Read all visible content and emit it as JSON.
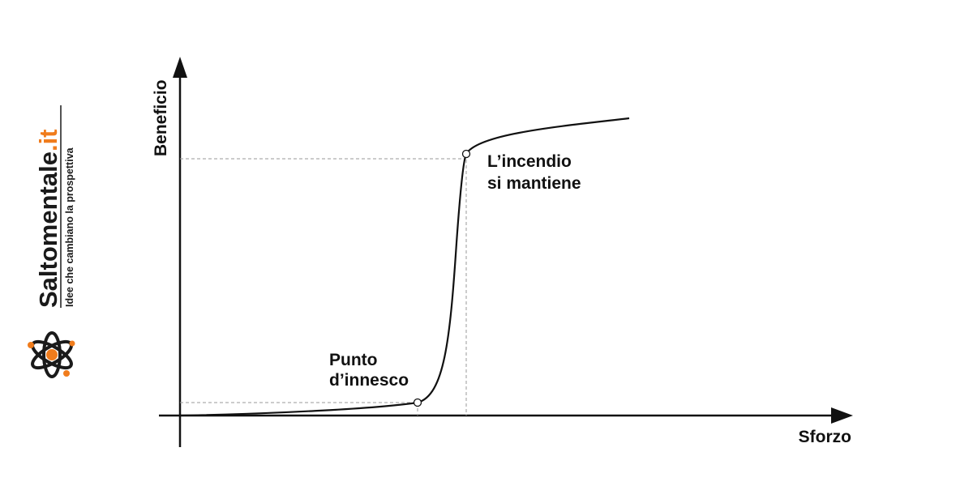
{
  "brand": {
    "name": "Saltomentale",
    "tld": ".it",
    "tagline": "Idee che cambiano la prospettiva",
    "accent_color": "#f07c1c",
    "logo_icon": "atom-icon"
  },
  "diagram": {
    "x_axis_label": "Sforzo",
    "y_axis_label": "Beneficio",
    "curve_shape": "sigmoid step",
    "points": [
      {
        "id": "trigger",
        "label_lines": [
          "Punto",
          "d’innesco"
        ]
      },
      {
        "id": "sustain",
        "label_lines": [
          "L’incendio",
          "si mantiene"
        ]
      }
    ],
    "line_color": "#111111",
    "guide_color": "#9a9a9a"
  }
}
